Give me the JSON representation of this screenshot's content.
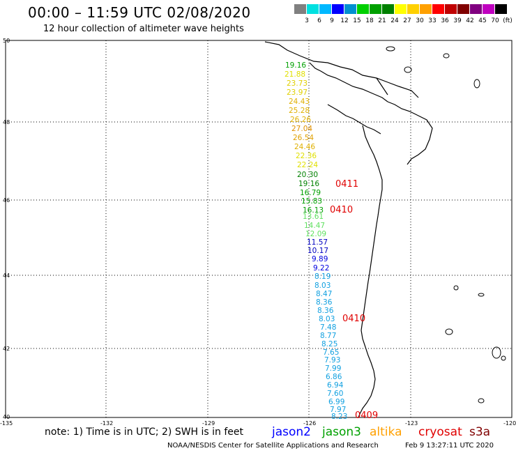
{
  "header": {
    "title": "00:00 – 11:59 UTC 02/08/2020",
    "subtitle": "12 hour collection of altimeter wave heights"
  },
  "color_scale": {
    "unit_label": "(ft)",
    "bins": [
      {
        "label": "",
        "color": "#808080"
      },
      {
        "label": "3",
        "color": "#00e0e0"
      },
      {
        "label": "6",
        "color": "#00b8ff"
      },
      {
        "label": "9",
        "color": "#0000ff"
      },
      {
        "label": "12",
        "color": "#0090d0"
      },
      {
        "label": "15",
        "color": "#00d000"
      },
      {
        "label": "18",
        "color": "#00a000"
      },
      {
        "label": "21",
        "color": "#008000"
      },
      {
        "label": "24",
        "color": "#ffff00"
      },
      {
        "label": "27",
        "color": "#ffd000"
      },
      {
        "label": "30",
        "color": "#ffa000"
      },
      {
        "label": "33",
        "color": "#ff0000"
      },
      {
        "label": "36",
        "color": "#c00000"
      },
      {
        "label": "39",
        "color": "#800000"
      },
      {
        "label": "42",
        "color": "#800080"
      },
      {
        "label": "45",
        "color": "#c000c0"
      },
      {
        "label": "70",
        "color": "#000000"
      }
    ]
  },
  "map": {
    "lat_labels": [
      "50",
      "48",
      "46",
      "44",
      "42",
      "40"
    ],
    "lon_labels": [
      "-135",
      "-132",
      "-129",
      "-126",
      "-123",
      "-120"
    ],
    "observations": [
      {
        "value": "19.16",
        "color": "#00a000"
      },
      {
        "value": "21.88",
        "color": "#e0e000"
      },
      {
        "value": "23.73",
        "color": "#e0d000"
      },
      {
        "value": "23.97",
        "color": "#e0d000"
      },
      {
        "value": "24.43",
        "color": "#e0b000"
      },
      {
        "value": "25.28",
        "color": "#e0b000"
      },
      {
        "value": "26.26",
        "color": "#e0b000"
      },
      {
        "value": "27.04",
        "color": "#e09000"
      },
      {
        "value": "26.54",
        "color": "#e0a000"
      },
      {
        "value": "24.46",
        "color": "#e0b000"
      },
      {
        "value": "22.36",
        "color": "#e0e000"
      },
      {
        "value": "22.24",
        "color": "#e0e000"
      },
      {
        "value": "20.30",
        "color": "#008000"
      },
      {
        "value": "19.16",
        "color": "#008000"
      },
      {
        "value": "16.79",
        "color": "#00a000"
      },
      {
        "value": "15.83",
        "color": "#00a000"
      },
      {
        "value": "16.13",
        "color": "#00a000"
      },
      {
        "value": "13.61",
        "color": "#60e060"
      },
      {
        "value": "14.47",
        "color": "#60e060"
      },
      {
        "value": "12.09",
        "color": "#60e060"
      },
      {
        "value": "11.57",
        "color": "#0000c0"
      },
      {
        "value": "10.17",
        "color": "#0000c0"
      },
      {
        "value": "9.89",
        "color": "#0000e0"
      },
      {
        "value": "9.22",
        "color": "#0000e0"
      },
      {
        "value": "8.19",
        "color": "#10a0e0"
      },
      {
        "value": "8.03",
        "color": "#10a0e0"
      },
      {
        "value": "8.47",
        "color": "#10a0e0"
      },
      {
        "value": "8.36",
        "color": "#10a0e0"
      },
      {
        "value": "8.36",
        "color": "#10a0e0"
      },
      {
        "value": "8.03",
        "color": "#10a0e0"
      },
      {
        "value": "7.48",
        "color": "#10a0e0"
      },
      {
        "value": "8.77",
        "color": "#10a0e0"
      },
      {
        "value": "8.25",
        "color": "#10a0e0"
      },
      {
        "value": "7.65",
        "color": "#10a0e0"
      },
      {
        "value": "7.93",
        "color": "#10a0e0"
      },
      {
        "value": "7.99",
        "color": "#10a0e0"
      },
      {
        "value": "6.86",
        "color": "#10a0e0"
      },
      {
        "value": "6.94",
        "color": "#10a0e0"
      },
      {
        "value": "7.60",
        "color": "#10a0e0"
      },
      {
        "value": "6.99",
        "color": "#10a0e0"
      },
      {
        "value": "7.97",
        "color": "#10a0e0"
      },
      {
        "value": "8.23",
        "color": "#10a0e0"
      }
    ],
    "times": [
      "0411",
      "0410",
      "0410",
      "0409"
    ],
    "time_color": "#e00000"
  },
  "footer": {
    "note": "note: 1) Time is in UTC; 2) SWH is in feet",
    "satellites": [
      {
        "name": "jason2",
        "color": "#0000ff"
      },
      {
        "name": "jason3",
        "color": "#00a000"
      },
      {
        "name": "altika",
        "color": "#ffa000"
      },
      {
        "name": "cryosat",
        "color": "#e00000"
      },
      {
        "name": "s3a",
        "color": "#800000"
      }
    ],
    "credit": "NOAA/NESDIS Center for Satellite Applications and Research",
    "timestamp": "Feb  9 13:27:11 UTC 2020"
  }
}
